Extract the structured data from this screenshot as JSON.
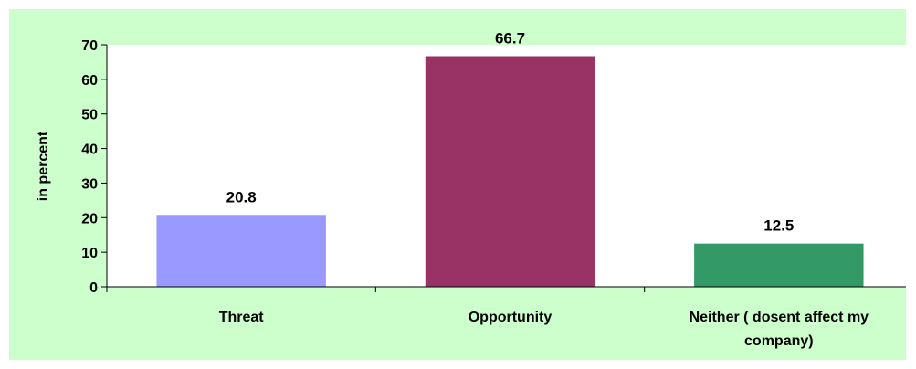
{
  "chart_data": {
    "type": "bar",
    "categories": [
      "Threat",
      "Opportunity",
      "Neither ( dosent affect my company)"
    ],
    "category_lines": [
      [
        "Threat"
      ],
      [
        "Opportunity"
      ],
      [
        "Neither ( dosent affect my",
        "company)"
      ]
    ],
    "values": [
      20.8,
      66.7,
      12.5
    ],
    "data_labels": [
      "20.8",
      "66.7",
      "12.5"
    ],
    "bar_colors": [
      "#9999ff",
      "#993366",
      "#339966"
    ],
    "ylabel": "in percent",
    "xlabel": "",
    "ylim": [
      0,
      70
    ],
    "yticks": [
      0,
      10,
      20,
      30,
      40,
      50,
      60,
      70
    ],
    "grid": false,
    "legend": "none",
    "background_color": "#ccffcc",
    "plot_background_color": "#ffffff"
  }
}
